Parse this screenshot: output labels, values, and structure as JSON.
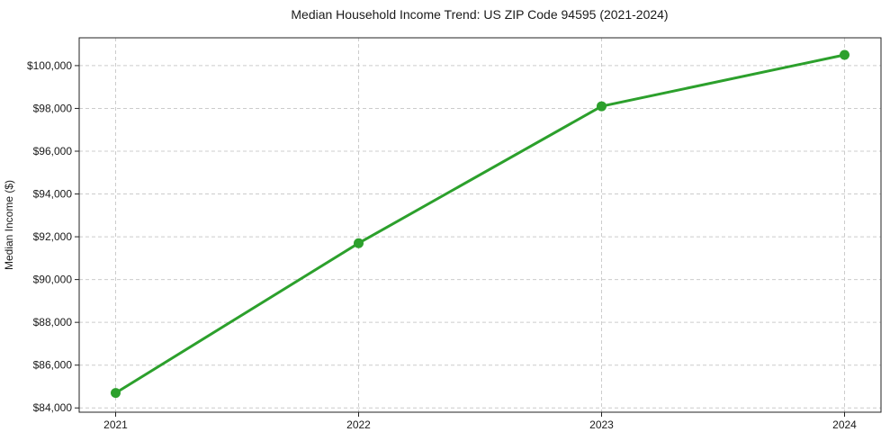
{
  "chart_data": {
    "type": "line",
    "title": "Median Household Income Trend: US ZIP Code 94595 (2021-2024)",
    "xlabel": "",
    "ylabel": "Median Income ($)",
    "x": [
      2021,
      2022,
      2023,
      2024
    ],
    "x_tick_labels": [
      "2021",
      "2022",
      "2023",
      "2024"
    ],
    "series": [
      {
        "name": "Median Household Income",
        "values": [
          84700,
          91700,
          98100,
          100500
        ]
      }
    ],
    "y_ticks": [
      84000,
      86000,
      88000,
      90000,
      92000,
      94000,
      96000,
      98000,
      100000
    ],
    "y_tick_labels": [
      "$84,000",
      "$86,000",
      "$88,000",
      "$90,000",
      "$92,000",
      "$94,000",
      "$96,000",
      "$98,000",
      "$100,000"
    ],
    "xlim": [
      2020.85,
      2024.15
    ],
    "ylim": [
      83800,
      101300
    ],
    "grid": true,
    "grid_style": "dashed",
    "legend": "none",
    "colors": {
      "line": "#2ca02c",
      "marker": "#2ca02c",
      "grid": "#cccccc",
      "spine": "#222222",
      "text": "#1a1a1a",
      "background": "#ffffff"
    }
  }
}
